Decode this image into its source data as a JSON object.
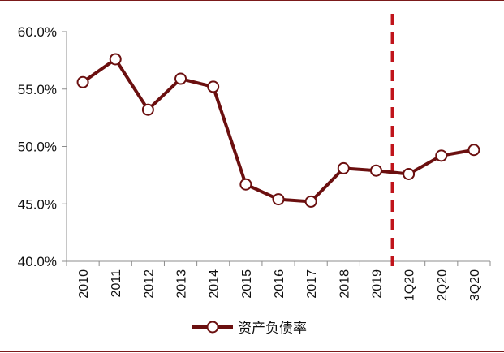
{
  "chart_data": {
    "type": "line",
    "categories": [
      "2010",
      "2011",
      "2012",
      "2013",
      "2014",
      "2015",
      "2016",
      "2017",
      "2018",
      "2019",
      "1Q20",
      "2Q20",
      "3Q20"
    ],
    "series": [
      {
        "name": "资产负债率",
        "values": [
          55.6,
          57.6,
          53.2,
          55.9,
          55.2,
          46.7,
          45.4,
          45.2,
          48.1,
          47.9,
          47.6,
          49.2,
          49.7
        ],
        "color": "#6b0f0f"
      }
    ],
    "yticks": [
      "60.0%",
      "55.0%",
      "50.0%",
      "45.0%",
      "40.0%"
    ],
    "ylim": [
      40,
      60
    ],
    "divider_after_category": "2019",
    "divider_color": "#c0141b",
    "legend_position": "bottom"
  }
}
